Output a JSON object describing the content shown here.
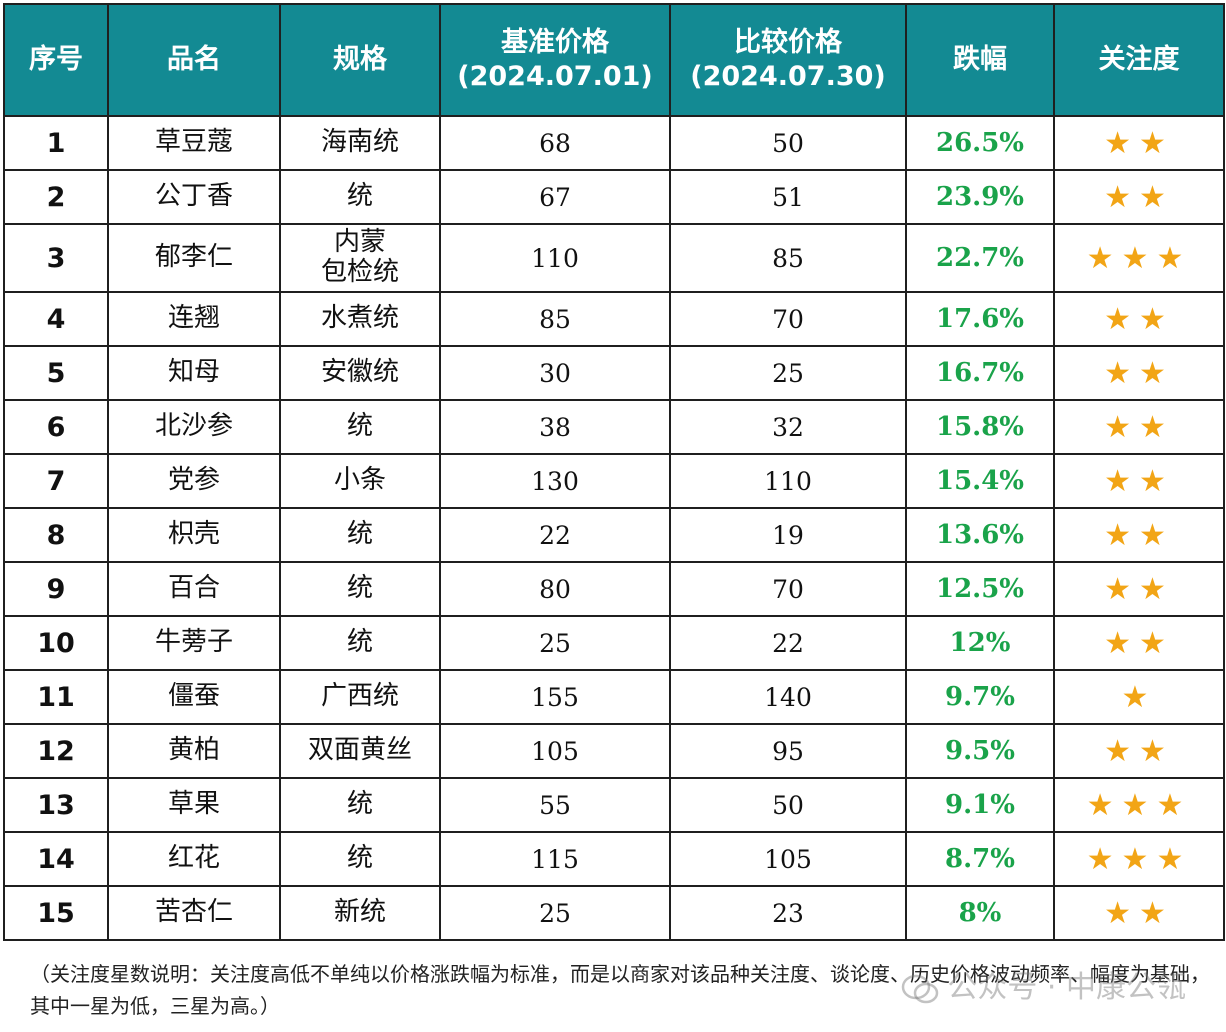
{
  "table": {
    "headers": [
      "序号",
      "品名",
      "规格",
      "基准价格\n(2024.07.01)",
      "比较价格\n(2024.07.30)",
      "跌幅",
      "关注度"
    ],
    "rows": [
      {
        "no": "1",
        "name": "草豆蔻",
        "spec": "海南统",
        "base": "68",
        "compare": "50",
        "drop": "26.5%",
        "stars": "★★"
      },
      {
        "no": "2",
        "name": "公丁香",
        "spec": "统",
        "base": "67",
        "compare": "51",
        "drop": "23.9%",
        "stars": "★★"
      },
      {
        "no": "3",
        "name": "郁李仁",
        "spec": "内蒙\n包检统",
        "base": "110",
        "compare": "85",
        "drop": "22.7%",
        "stars": "★★★"
      },
      {
        "no": "4",
        "name": "连翘",
        "spec": "水煮统",
        "base": "85",
        "compare": "70",
        "drop": "17.6%",
        "stars": "★★"
      },
      {
        "no": "5",
        "name": "知母",
        "spec": "安徽统",
        "base": "30",
        "compare": "25",
        "drop": "16.7%",
        "stars": "★★"
      },
      {
        "no": "6",
        "name": "北沙参",
        "spec": "统",
        "base": "38",
        "compare": "32",
        "drop": "15.8%",
        "stars": "★★"
      },
      {
        "no": "7",
        "name": "党参",
        "spec": "小条",
        "base": "130",
        "compare": "110",
        "drop": "15.4%",
        "stars": "★★"
      },
      {
        "no": "8",
        "name": "枳壳",
        "spec": "统",
        "base": "22",
        "compare": "19",
        "drop": "13.6%",
        "stars": "★★"
      },
      {
        "no": "9",
        "name": "百合",
        "spec": "统",
        "base": "80",
        "compare": "70",
        "drop": "12.5%",
        "stars": "★★"
      },
      {
        "no": "10",
        "name": "牛蒡子",
        "spec": "统",
        "base": "25",
        "compare": "22",
        "drop": "12%",
        "stars": "★★"
      },
      {
        "no": "11",
        "name": "僵蚕",
        "spec": "广西统",
        "base": "155",
        "compare": "140",
        "drop": "9.7%",
        "stars": "★"
      },
      {
        "no": "12",
        "name": "黄柏",
        "spec": "双面黄丝",
        "base": "105",
        "compare": "95",
        "drop": "9.5%",
        "stars": "★★"
      },
      {
        "no": "13",
        "name": "草果",
        "spec": "统",
        "base": "55",
        "compare": "50",
        "drop": "9.1%",
        "stars": "★★★"
      },
      {
        "no": "14",
        "name": "红花",
        "spec": "统",
        "base": "115",
        "compare": "105",
        "drop": "8.7%",
        "stars": "★★★"
      },
      {
        "no": "15",
        "name": "苦杏仁",
        "spec": "新统",
        "base": "25",
        "compare": "23",
        "drop": "8%",
        "stars": "★★"
      }
    ]
  },
  "note": "（关注度星数说明：关注度高低不单纯以价格涨跌幅为标准，而是以商家对该品种关注度、谈论度、历史价格波动频率、幅度为基础，其中一星为低，三星为高。）",
  "watermark": "公众号 · 中康公瓴",
  "colors": {
    "header_bg": "#138a93",
    "drop_text": "#1aa34a",
    "star": "#f2a516"
  }
}
